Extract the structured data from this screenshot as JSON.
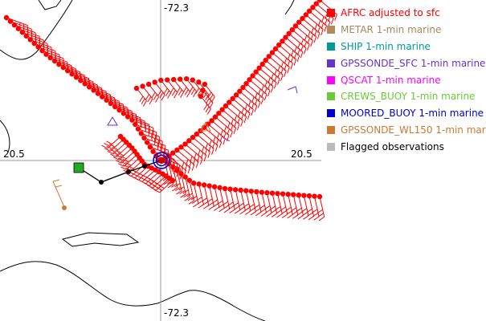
{
  "map": {
    "lon_label": "-72.3",
    "lat_label": "20.5"
  },
  "legend": {
    "items": [
      {
        "label": "AFRC adjusted to sfc",
        "color": "#ff0000",
        "text_color": "#ff0000",
        "name": "legend-item-afrc"
      },
      {
        "label": "METAR 1-min marine",
        "color": "#b08a5c",
        "text_color": "#a88660",
        "name": "legend-item-metar"
      },
      {
        "label": "SHIP 1-min marine",
        "color": "#009999",
        "text_color": "#009999",
        "name": "legend-item-ship"
      },
      {
        "label": "GPSSONDE_SFC 1-min marine",
        "color": "#6633cc",
        "text_color": "#6633cc",
        "name": "legend-item-gpssonde-sfc"
      },
      {
        "label": "QSCAT 1-min marine",
        "color": "#ff00ff",
        "text_color": "#ff00ff",
        "name": "legend-item-qscat"
      },
      {
        "label": "CREWS_BUOY 1-min marine",
        "color": "#66cc33",
        "text_color": "#66cc33",
        "name": "legend-item-crews-buoy"
      },
      {
        "label": "MOORED_BUOY 1-min marine",
        "color": "#0000cc",
        "text_color": "#0000cc",
        "name": "legend-item-moored-buoy"
      },
      {
        "label": "GPSSONDE_WL150 1-min mar",
        "color": "#cc7a33",
        "text_color": "#cc7a33",
        "name": "legend-item-gpssonde-wl150"
      },
      {
        "label": "Flagged observations",
        "color": "#bbbbbb",
        "text_color": "#000000",
        "name": "legend-item-flagged"
      }
    ]
  }
}
